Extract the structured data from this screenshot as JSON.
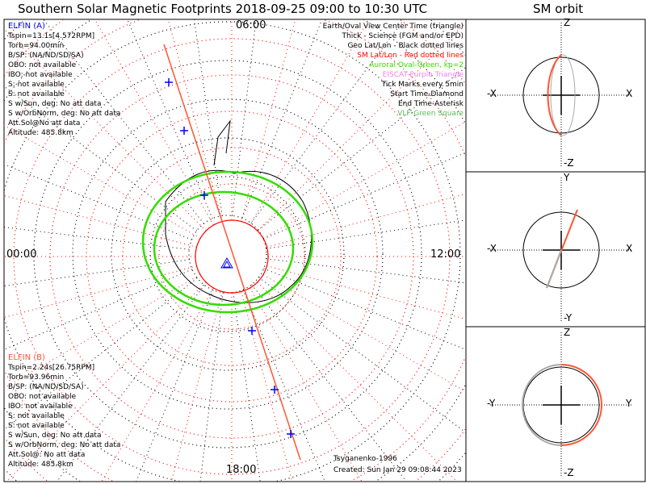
{
  "title": "Southern Solar Magnetic Footprints 2018-09-25 09:00 to 10:30 UTC",
  "orbit_title": "SM orbit",
  "mlt_labels": {
    "top": "06:00",
    "left": "00:00",
    "right": "12:00",
    "bottom": "18:00"
  },
  "elfin_a": {
    "name": "ELFIN (A)",
    "lines": [
      "Tspin=13.1s[4.572RPM]",
      "Torb=94.00min",
      "B/SP: (NA/ND/SD/SA)",
      "OBO: not available",
      "IBO: not available",
      "S: not available",
      "S: not available",
      "S w/Sun, deg: No att data",
      "S w/OrbNorm, deg: No att data",
      "Att.Sol@No att data",
      "Altitude: 485.8km"
    ]
  },
  "elfin_b": {
    "name": "ELFIN (B)",
    "lines": [
      "Tspin=2.24s[26.75RPM]",
      "Torb=93.96min",
      "B/SP: (NA/ND/SD/SA)",
      "OBO: not available",
      "IBO: not available",
      "S: not available",
      "S: not available",
      "S w/Sun, deg: No att data",
      "S w/OrbNorm, deg: No att data",
      "Att.Sol@: No att data",
      "Altitude: 485.8km"
    ]
  },
  "legend": [
    {
      "text": "Earth/Oval View Center Time (triangle)",
      "color": "#000000"
    },
    {
      "text": "Thick - Science (FGM and/or EPD)",
      "color": "#000000"
    },
    {
      "text": "Geo Lat/Lon - Black dotted lines",
      "color": "#000000"
    },
    {
      "text": "SM Lat/Lon - Red dotted lines",
      "color": "#ff0000"
    },
    {
      "text": "Auroral Oval-Green, kp=2",
      "color": "#33dd00"
    },
    {
      "text": "EISCAT-Purple Triangle",
      "color": "#ee82ee"
    },
    {
      "text": "Tick Marks every 5min",
      "color": "#000000"
    },
    {
      "text": "Start Time-Diamond",
      "color": "#000000"
    },
    {
      "text": "End Time-Asterisk",
      "color": "#000000"
    },
    {
      "text": "VLF-Green Square",
      "color": "#55bb55"
    }
  ],
  "footer": {
    "model": "Tsyganenko-1996",
    "created": "Created: Sun Jan 29 09:08:44 2023"
  },
  "orbit_panels": [
    {
      "top": "Z",
      "bottom": "-Z",
      "left": "-X",
      "right": "X"
    },
    {
      "top": "Y",
      "bottom": "-Y",
      "left": "-X",
      "right": "X"
    },
    {
      "top": "Z",
      "bottom": "-Z",
      "left": "-Y",
      "right": "Y"
    }
  ],
  "colors": {
    "elfin_a": "#0000ff",
    "elfin_b": "#ff5533",
    "sm_grid": "#ff0000",
    "oval": "#33dd00"
  }
}
